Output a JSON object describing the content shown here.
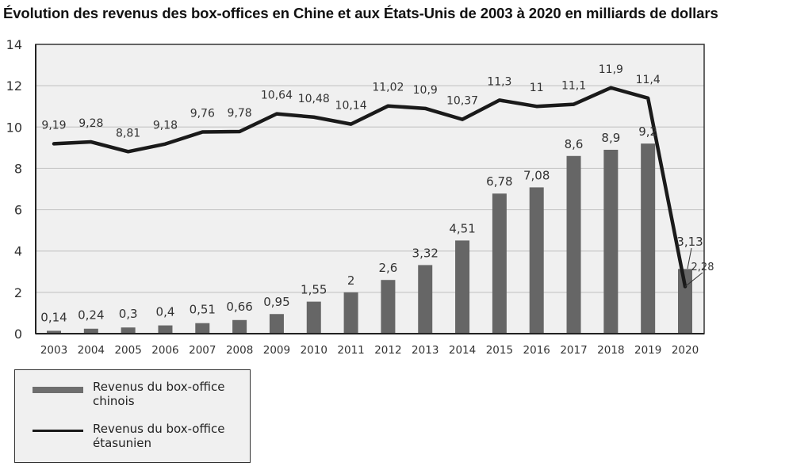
{
  "chart_data": {
    "type": "bar+line",
    "title": "Évolution des revenus des box-offices en Chine et aux États-Unis de 2003 à 2020 en milliards de dollars",
    "xlabel": "",
    "ylabel": "",
    "ylim": [
      0,
      14
    ],
    "yticks": [
      "0",
      "2",
      "4",
      "6",
      "8",
      "10",
      "12",
      "14"
    ],
    "grid": true,
    "legend_position": "bottom-left",
    "categories": [
      "2003",
      "2004",
      "2005",
      "2006",
      "2007",
      "2008",
      "2009",
      "2010",
      "2011",
      "2012",
      "2013",
      "2014",
      "2015",
      "2016",
      "2017",
      "2018",
      "2019",
      "2020"
    ],
    "series": [
      {
        "name": "Revenus du box-office chinois",
        "type": "bar",
        "color": "#666666",
        "values": [
          0.14,
          0.24,
          0.3,
          0.4,
          0.51,
          0.66,
          0.95,
          1.55,
          2,
          2.6,
          3.32,
          4.51,
          6.78,
          7.08,
          8.6,
          8.9,
          9.2,
          3.13
        ],
        "labels": [
          "0,14",
          "0,24",
          "0,3",
          "0,4",
          "0,51",
          "0,66",
          "0,95",
          "1,55",
          "2",
          "2,6",
          "3,32",
          "4,51",
          "6,78",
          "7,08",
          "8,6",
          "8,9",
          "9,2",
          "3,13"
        ]
      },
      {
        "name": "Revenus du box-office étasunien",
        "type": "line",
        "color": "#1a1a1a",
        "values": [
          9.19,
          9.28,
          8.81,
          9.18,
          9.76,
          9.78,
          10.64,
          10.48,
          10.14,
          11.02,
          10.9,
          10.37,
          11.3,
          11,
          11.1,
          11.9,
          11.4,
          2.28
        ],
        "labels": [
          "9,19",
          "9,28",
          "8,81",
          "9,18",
          "9,76",
          "9,78",
          "10,64",
          "10,48",
          "10,14",
          "11,02",
          "10,9",
          "10,37",
          "11,3",
          "11",
          "11,1",
          "11,9",
          "11,4",
          "2,28"
        ]
      }
    ]
  },
  "legend": {
    "items": [
      {
        "label_line1": "Revenus du box-office",
        "label_line2": "chinois"
      },
      {
        "label_line1": "Revenus du box-office",
        "label_line2": "étasunien"
      }
    ]
  },
  "colors": {
    "plot_background": "#f0f0f0",
    "gridline": "#c8c8c8",
    "bar": "#666666",
    "line": "#1a1a1a"
  }
}
